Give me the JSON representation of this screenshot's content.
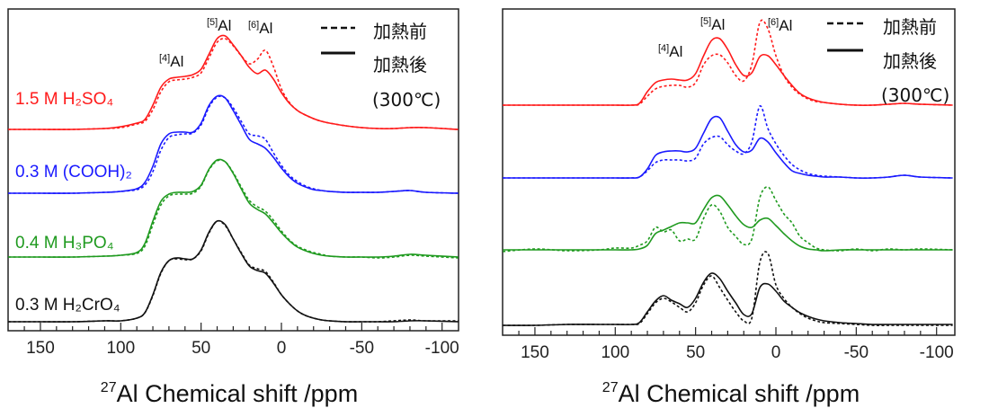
{
  "chart_data": [
    {
      "type": "line",
      "xlabel_sup": "27",
      "xlabel": "Al Chemical shift /ppm",
      "xlim": [
        170,
        -110
      ],
      "x_ticks": [
        150,
        100,
        50,
        0,
        -50,
        -100
      ],
      "x_tick_labels": [
        "150",
        "100",
        "50",
        "0",
        "-50",
        "-100"
      ],
      "y_ticks": "none",
      "grid": false,
      "legend": {
        "placement": "top-right",
        "entries": [
          {
            "style": "dashed",
            "label": "加熱前"
          },
          {
            "style": "solid",
            "label": "加熱後"
          }
        ],
        "note": "(300℃)"
      },
      "peak_labels": [
        {
          "sup": "[4]",
          "text": "Al"
        },
        {
          "sup": "[5]",
          "text": "Al"
        },
        {
          "sup": "[6]",
          "text": "Al"
        }
      ],
      "sample_labels": [
        {
          "text": "1.5 M H₂SO₄",
          "color": "#ff1a1a"
        },
        {
          "text": "0.3 M (COOH)₂",
          "color": "#1a1aff"
        },
        {
          "text": "0.4 M H₃PO₄",
          "color": "#1f9a1f"
        },
        {
          "text": "0.3 M H₂CrO₄",
          "color": "#111111"
        }
      ],
      "x": [
        170,
        150,
        130,
        110,
        100,
        90,
        85,
        80,
        75,
        70,
        65,
        60,
        55,
        50,
        45,
        40,
        35,
        30,
        25,
        20,
        15,
        10,
        5,
        0,
        -5,
        -10,
        -15,
        -20,
        -25,
        -30,
        -40,
        -50,
        -60,
        -70,
        -80,
        -90,
        -110
      ],
      "series": [
        {
          "sample": 0,
          "style": "solid",
          "color": "#ff1a1a",
          "values": [
            0,
            0,
            0,
            0.01,
            0.03,
            0.07,
            0.11,
            0.27,
            0.47,
            0.56,
            0.58,
            0.59,
            0.61,
            0.67,
            0.84,
            1.01,
            1.04,
            0.94,
            0.82,
            0.69,
            0.62,
            0.66,
            0.56,
            0.41,
            0.29,
            0.21,
            0.16,
            0.12,
            0.09,
            0.07,
            0.04,
            0.02,
            0.01,
            0.01,
            0.02,
            0.02,
            0
          ]
        },
        {
          "sample": 0,
          "style": "dashed",
          "color": "#ff1a1a",
          "values": [
            0,
            0,
            0,
            0.01,
            0.02,
            0.06,
            0.09,
            0.22,
            0.42,
            0.53,
            0.55,
            0.56,
            0.58,
            0.63,
            0.8,
            0.97,
            1.01,
            0.93,
            0.82,
            0.73,
            0.78,
            0.88,
            0.7,
            0.45,
            0.3,
            0.21,
            0.16,
            0.12,
            0.09,
            0.07,
            0.04,
            0.02,
            0.01,
            0.01,
            0.02,
            0.02,
            0
          ]
        },
        {
          "sample": 1,
          "style": "solid",
          "color": "#1a1aff",
          "values": [
            0,
            0,
            0,
            0.01,
            0.02,
            0.05,
            0.12,
            0.3,
            0.55,
            0.66,
            0.68,
            0.68,
            0.68,
            0.78,
            0.98,
            1.08,
            1.06,
            0.92,
            0.76,
            0.6,
            0.55,
            0.5,
            0.4,
            0.28,
            0.18,
            0.11,
            0.07,
            0.04,
            0.03,
            0.02,
            0.01,
            0.01,
            0.01,
            0.02,
            0.03,
            0.01,
            0
          ]
        },
        {
          "sample": 1,
          "style": "dashed",
          "color": "#1a1aff",
          "values": [
            0,
            0,
            0,
            0.01,
            0.02,
            0.04,
            0.09,
            0.24,
            0.48,
            0.62,
            0.65,
            0.66,
            0.67,
            0.76,
            0.96,
            1.07,
            1.06,
            0.95,
            0.8,
            0.66,
            0.64,
            0.6,
            0.45,
            0.31,
            0.2,
            0.13,
            0.08,
            0.05,
            0.03,
            0.02,
            0.01,
            0.01,
            0.01,
            0.02,
            0.03,
            0.01,
            0
          ]
        },
        {
          "sample": 2,
          "style": "solid",
          "color": "#1f9a1f",
          "values": [
            0,
            0,
            0,
            0.01,
            0.02,
            0.05,
            0.15,
            0.4,
            0.62,
            0.7,
            0.72,
            0.72,
            0.73,
            0.8,
            0.98,
            1.08,
            1.06,
            0.93,
            0.76,
            0.6,
            0.53,
            0.48,
            0.38,
            0.27,
            0.18,
            0.11,
            0.07,
            0.04,
            0.02,
            0.01,
            0,
            0,
            0,
            0.01,
            0.03,
            0.02,
            0
          ]
        },
        {
          "sample": 2,
          "style": "dashed",
          "color": "#1f9a1f",
          "values": [
            0,
            0,
            0,
            0.01,
            0.02,
            0.04,
            0.12,
            0.36,
            0.58,
            0.68,
            0.7,
            0.7,
            0.71,
            0.79,
            0.97,
            1.07,
            1.06,
            0.94,
            0.78,
            0.63,
            0.56,
            0.51,
            0.41,
            0.29,
            0.19,
            0.12,
            0.08,
            0.05,
            0.03,
            0.01,
            0,
            0,
            -0.01,
            0,
            0.02,
            0.01,
            -0.01
          ]
        },
        {
          "sample": 3,
          "style": "solid",
          "color": "#111111",
          "values": [
            0,
            0,
            0,
            0.01,
            0.01,
            0.04,
            0.1,
            0.3,
            0.55,
            0.68,
            0.71,
            0.7,
            0.7,
            0.8,
            1.0,
            1.12,
            1.08,
            0.92,
            0.76,
            0.62,
            0.57,
            0.54,
            0.43,
            0.3,
            0.2,
            0.12,
            0.07,
            0.04,
            0.02,
            0.01,
            0,
            0,
            0,
            0,
            0.01,
            0.01,
            0
          ]
        },
        {
          "sample": 3,
          "style": "dashed",
          "color": "#111111",
          "values": [
            0,
            0,
            0,
            0.01,
            0.01,
            0.04,
            0.1,
            0.29,
            0.54,
            0.68,
            0.7,
            0.69,
            0.7,
            0.79,
            0.99,
            1.12,
            1.07,
            0.92,
            0.77,
            0.63,
            0.59,
            0.56,
            0.44,
            0.3,
            0.2,
            0.12,
            0.07,
            0.04,
            0.02,
            0.01,
            0,
            0,
            0,
            0.01,
            0.02,
            0.01,
            0.01
          ]
        }
      ]
    },
    {
      "type": "line",
      "xlabel_sup": "27",
      "xlabel": "Al Chemical shift /ppm",
      "xlim": [
        170,
        -110
      ],
      "x_ticks": [
        150,
        100,
        50,
        0,
        -50,
        -100
      ],
      "x_tick_labels": [
        "150",
        "100",
        "50",
        "0",
        "-50",
        "-100"
      ],
      "y_ticks": "none",
      "grid": false,
      "legend": {
        "placement": "top-right",
        "entries": [
          {
            "style": "dashed",
            "label": "加熱前"
          },
          {
            "style": "solid",
            "label": "加熱後"
          }
        ],
        "note": "(300℃)"
      },
      "peak_labels": [
        {
          "sup": "[4]",
          "text": "Al"
        },
        {
          "sup": "[5]",
          "text": "Al"
        },
        {
          "sup": "[6]",
          "text": "Al"
        }
      ],
      "x": [
        170,
        150,
        130,
        110,
        100,
        90,
        85,
        80,
        75,
        70,
        65,
        60,
        55,
        50,
        45,
        40,
        35,
        30,
        25,
        20,
        15,
        10,
        5,
        0,
        -5,
        -10,
        -15,
        -20,
        -25,
        -30,
        -40,
        -50,
        -60,
        -70,
        -80,
        -90,
        -110
      ],
      "series": [
        {
          "sample": 0,
          "style": "solid",
          "color": "#ff1a1a",
          "values": [
            0,
            0,
            0,
            0,
            0,
            0,
            0.02,
            0.15,
            0.25,
            0.28,
            0.29,
            0.28,
            0.28,
            0.35,
            0.55,
            0.72,
            0.74,
            0.62,
            0.45,
            0.33,
            0.36,
            0.54,
            0.55,
            0.45,
            0.33,
            0.22,
            0.13,
            0.08,
            0.05,
            0.03,
            0.01,
            0,
            0,
            0.01,
            0.02,
            0.01,
            0
          ]
        },
        {
          "sample": 0,
          "style": "dashed",
          "color": "#ff1a1a",
          "values": [
            0,
            0,
            0,
            0,
            0,
            0,
            0.01,
            0.1,
            0.18,
            0.21,
            0.22,
            0.22,
            0.2,
            0.25,
            0.45,
            0.55,
            0.56,
            0.47,
            0.33,
            0.27,
            0.45,
            0.92,
            0.85,
            0.55,
            0.33,
            0.2,
            0.12,
            0.07,
            0.04,
            0.03,
            0.01,
            0,
            0,
            0.01,
            0.02,
            0.01,
            0
          ]
        },
        {
          "sample": 1,
          "style": "solid",
          "color": "#1a1aff",
          "values": [
            0,
            0,
            0,
            0,
            0,
            0,
            0.01,
            0.1,
            0.25,
            0.29,
            0.3,
            0.3,
            0.29,
            0.33,
            0.5,
            0.66,
            0.67,
            0.52,
            0.37,
            0.29,
            0.31,
            0.44,
            0.4,
            0.28,
            0.17,
            0.08,
            0.05,
            0.03,
            0.02,
            0.01,
            0.01,
            0,
            0,
            0.01,
            0.03,
            0.01,
            0
          ]
        },
        {
          "sample": 1,
          "style": "dashed",
          "color": "#1a1aff",
          "values": [
            0,
            0,
            0,
            0,
            0,
            0,
            0.01,
            0.08,
            0.17,
            0.2,
            0.2,
            0.2,
            0.19,
            0.22,
            0.38,
            0.45,
            0.46,
            0.37,
            0.3,
            0.27,
            0.4,
            0.8,
            0.55,
            0.38,
            0.25,
            0.15,
            0.09,
            0.05,
            0.03,
            0.02,
            0.01,
            0,
            0,
            0.01,
            0.03,
            0.01,
            0
          ]
        },
        {
          "sample": 2,
          "style": "solid",
          "color": "#1f9a1f",
          "values": [
            0,
            0,
            0,
            0,
            0,
            0,
            0.01,
            0.05,
            0.18,
            0.22,
            0.26,
            0.3,
            0.3,
            0.3,
            0.45,
            0.58,
            0.6,
            0.5,
            0.38,
            0.28,
            0.25,
            0.33,
            0.35,
            0.27,
            0.18,
            0.1,
            0.04,
            0.01,
            0,
            -0.01,
            0,
            0,
            0,
            0,
            0,
            0,
            0
          ]
        },
        {
          "sample": 2,
          "style": "dashed",
          "color": "#1f9a1f",
          "values": [
            -0.02,
            0.01,
            -0.01,
            0,
            0.02,
            0.02,
            0.05,
            0.1,
            0.25,
            0.2,
            0.22,
            0.1,
            0.12,
            0.12,
            0.35,
            0.5,
            0.43,
            0.25,
            0.15,
            0.06,
            0.12,
            0.58,
            0.7,
            0.55,
            0.4,
            0.3,
            0.15,
            0.08,
            0.02,
            0,
            -0.01,
            0.01,
            -0.01,
            0.01,
            0,
            0.01,
            0
          ]
        },
        {
          "sample": 3,
          "style": "solid",
          "color": "#111111",
          "values": [
            0,
            0,
            0.01,
            0.01,
            0.01,
            0.01,
            0.03,
            0.15,
            0.27,
            0.33,
            0.28,
            0.24,
            0.2,
            0.3,
            0.48,
            0.58,
            0.52,
            0.38,
            0.25,
            0.12,
            0.13,
            0.42,
            0.46,
            0.38,
            0.27,
            0.2,
            0.14,
            0.1,
            0.07,
            0.05,
            0.03,
            0.02,
            0.01,
            0.01,
            0.01,
            0.01,
            0.01
          ]
        },
        {
          "sample": 3,
          "style": "dashed",
          "color": "#111111",
          "values": [
            0,
            0,
            0.01,
            0.01,
            0.01,
            0.01,
            0.02,
            0.13,
            0.25,
            0.3,
            0.26,
            0.2,
            0.15,
            0.25,
            0.45,
            0.55,
            0.42,
            0.28,
            0.15,
            0.05,
            0.08,
            0.7,
            0.8,
            0.45,
            0.3,
            0.2,
            0.13,
            0.08,
            0.05,
            0.03,
            0.02,
            0.01,
            0,
            0,
            0,
            0,
            0
          ]
        }
      ]
    }
  ]
}
